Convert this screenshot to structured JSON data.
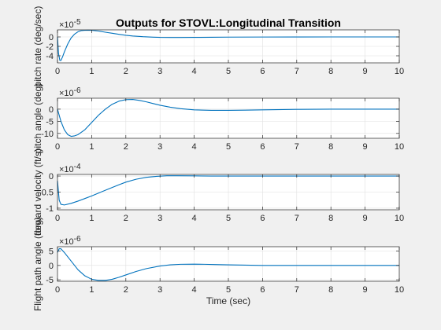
{
  "figure": {
    "title": "Outputs for STOVL:Longitudinal Transition",
    "xlabel": "Time (sec)",
    "background": "#f0f0f0",
    "axes_background": "#ffffff",
    "line_color": "#0072bd",
    "grid_color": "#e0e0e0"
  },
  "chart_data": [
    {
      "type": "line",
      "ylabel": "pitch rate (deg/sec)",
      "multiplier_base": "×10",
      "multiplier_exp": "-5",
      "xlim": [
        0,
        10
      ],
      "ylim": [
        -5.5,
        1.5
      ],
      "xticks": [
        0,
        1,
        2,
        3,
        4,
        5,
        6,
        7,
        8,
        9,
        10
      ],
      "yticks": [
        -4,
        -2,
        0
      ],
      "grid": true,
      "x": [
        0,
        0.03,
        0.07,
        0.1,
        0.15,
        0.2,
        0.3,
        0.4,
        0.5,
        0.6,
        0.7,
        0.8,
        0.9,
        1.0,
        1.2,
        1.4,
        1.6,
        1.8,
        2.0,
        2.2,
        2.5,
        2.8,
        3.0,
        3.3,
        3.6,
        4.0,
        4.5,
        5.0,
        6.0,
        7.0,
        8.0,
        9.0,
        10.0
      ],
      "y": [
        0,
        -3.5,
        -5.0,
        -5.0,
        -4.2,
        -3.2,
        -1.5,
        -0.2,
        0.6,
        1.1,
        1.35,
        1.4,
        1.42,
        1.4,
        1.25,
        1.0,
        0.78,
        0.55,
        0.35,
        0.2,
        0.05,
        -0.05,
        -0.1,
        -0.12,
        -0.12,
        -0.1,
        -0.07,
        -0.04,
        -0.02,
        -0.01,
        0,
        0,
        0
      ]
    },
    {
      "type": "line",
      "ylabel": "pitch angle (deg)",
      "multiplier_base": "×10",
      "multiplier_exp": "-6",
      "xlim": [
        0,
        10
      ],
      "ylim": [
        -12,
        4.5
      ],
      "xticks": [
        0,
        1,
        2,
        3,
        4,
        5,
        6,
        7,
        8,
        9,
        10
      ],
      "yticks": [
        -10,
        -5,
        0
      ],
      "grid": true,
      "x": [
        0,
        0.1,
        0.2,
        0.3,
        0.4,
        0.5,
        0.6,
        0.8,
        1.0,
        1.2,
        1.4,
        1.6,
        1.8,
        2.0,
        2.2,
        2.4,
        2.6,
        2.8,
        3.0,
        3.3,
        3.6,
        4.0,
        4.5,
        5.0,
        5.5,
        6.0,
        7.0,
        8.0,
        9.0,
        10.0
      ],
      "y": [
        0,
        -5,
        -8.5,
        -10.5,
        -11.2,
        -11.0,
        -10.5,
        -8.5,
        -5.5,
        -2.5,
        0,
        2,
        3.3,
        3.9,
        4.0,
        3.6,
        3.0,
        2.3,
        1.6,
        0.8,
        0.2,
        -0.3,
        -0.5,
        -0.5,
        -0.4,
        -0.3,
        -0.1,
        0,
        0,
        0
      ]
    },
    {
      "type": "line",
      "ylabel": "forward velocity (ft/s)",
      "multiplier_base": "×10",
      "multiplier_exp": "-4",
      "xlim": [
        0,
        10
      ],
      "ylim": [
        -1.05,
        0.05
      ],
      "xticks": [
        0,
        1,
        2,
        3,
        4,
        5,
        6,
        7,
        8,
        9,
        10
      ],
      "yticks": [
        -1,
        -0.5,
        0
      ],
      "grid": true,
      "x": [
        0,
        0.05,
        0.1,
        0.2,
        0.4,
        0.6,
        0.8,
        1.0,
        1.2,
        1.5,
        1.8,
        2.0,
        2.3,
        2.6,
        2.9,
        3.2,
        3.5,
        4.0,
        4.5,
        5.0,
        6.0,
        7.0,
        8.0,
        9.0,
        10.0
      ],
      "y": [
        -0.15,
        -0.75,
        -0.88,
        -0.9,
        -0.85,
        -0.78,
        -0.7,
        -0.62,
        -0.53,
        -0.4,
        -0.27,
        -0.19,
        -0.1,
        -0.04,
        -0.01,
        0.01,
        0.01,
        0.005,
        0,
        0,
        0,
        0,
        0,
        0,
        0
      ]
    },
    {
      "type": "line",
      "ylabel": "Flight path angle (deg)",
      "multiplier_base": "×10",
      "multiplier_exp": "-6",
      "xlim": [
        0,
        10
      ],
      "ylim": [
        -5.5,
        6.5
      ],
      "xticks": [
        0,
        1,
        2,
        3,
        4,
        5,
        6,
        7,
        8,
        9,
        10
      ],
      "yticks": [
        -5,
        0,
        5
      ],
      "grid": true,
      "x": [
        0,
        0.05,
        0.1,
        0.2,
        0.4,
        0.6,
        0.8,
        1.0,
        1.2,
        1.4,
        1.6,
        1.8,
        2.0,
        2.3,
        2.6,
        3.0,
        3.3,
        3.6,
        4.0,
        4.3,
        4.6,
        5.0,
        5.5,
        6.0,
        7.0,
        8.0,
        9.0,
        10.0
      ],
      "y": [
        4.5,
        5.8,
        5.8,
        4.5,
        1.5,
        -1.5,
        -3.6,
        -4.8,
        -5.2,
        -5.2,
        -4.8,
        -4.1,
        -3.3,
        -2.1,
        -1.1,
        -0.2,
        0.2,
        0.4,
        0.45,
        0.4,
        0.3,
        0.2,
        0.1,
        0,
        0,
        0,
        0,
        0
      ]
    }
  ]
}
